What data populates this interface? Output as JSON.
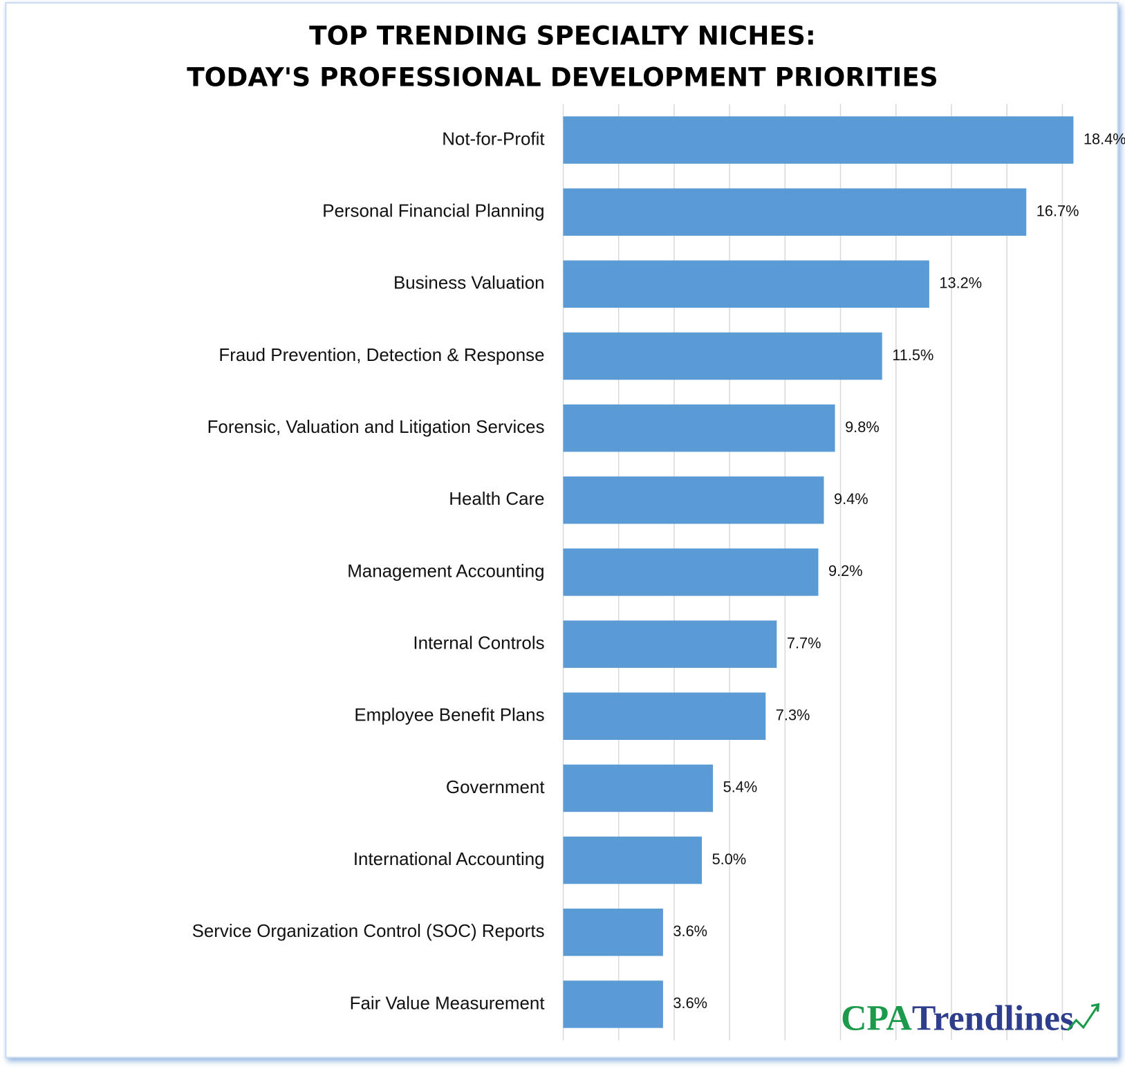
{
  "chart_data": {
    "type": "bar",
    "orientation": "horizontal",
    "title": [
      "TOP TRENDING SPECIALTY NICHES:",
      "TODAY'S PROFESSIONAL DEVELOPMENT PRIORITIES"
    ],
    "categories": [
      "Not-for-Profit",
      "Personal Financial Planning",
      "Business Valuation",
      "Fraud Prevention, Detection & Response",
      "Forensic, Valuation and Litigation Services",
      "Health Care",
      "Management Accounting",
      "Internal Controls",
      "Employee Benefit Plans",
      "Government",
      "International Accounting",
      "Service Organization Control (SOC) Reports",
      "Fair Value Measurement"
    ],
    "values": [
      18.4,
      16.7,
      13.2,
      11.5,
      9.8,
      9.4,
      9.2,
      7.7,
      7.3,
      5.4,
      5.0,
      3.6,
      3.6
    ],
    "value_labels": [
      "18.4%",
      "16.7%",
      "13.2%",
      "11.5%",
      "9.8%",
      "9.4%",
      "9.2%",
      "7.7%",
      "7.3%",
      "5.4%",
      "5.0%",
      "3.6%",
      "3.6%"
    ],
    "color": "#5b9bd5",
    "xlim": [
      0,
      20
    ],
    "xticks": [
      0,
      2,
      4,
      6,
      8,
      10,
      12,
      14,
      16,
      18
    ],
    "grid": true
  },
  "logo": {
    "prefix": "CPA",
    "name": "Trendlines"
  }
}
